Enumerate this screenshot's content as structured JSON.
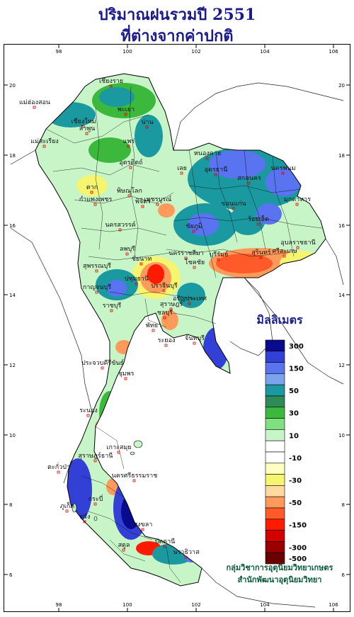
{
  "title_line1": "ปริมาณฝนรวมปี  2551",
  "title_line2": "ที่ต่างจากค่าปกติ",
  "axes": {
    "top_ticks": [
      "98",
      "100",
      "102",
      "104",
      "106"
    ],
    "bottom_ticks": [
      "98",
      "100",
      "102",
      "104",
      "106"
    ],
    "left_ticks": [
      "20",
      "18",
      "16",
      "14",
      "12",
      "10",
      "8",
      "6"
    ],
    "right_ticks": [
      "20",
      "18",
      "16",
      "14",
      "12",
      "10",
      "8",
      "6"
    ]
  },
  "legend": {
    "unit_label": "มิลลิเมตร",
    "classes": [
      {
        "color": "#0a0a8f",
        "label": "300"
      },
      {
        "color": "#3340d6",
        "label": ""
      },
      {
        "color": "#5a73f0",
        "label": "150"
      },
      {
        "color": "#7aa3ee",
        "label": ""
      },
      {
        "color": "#1a9aa0",
        "label": "50"
      },
      {
        "color": "#2e8b57",
        "label": ""
      },
      {
        "color": "#3cb83c",
        "label": "30"
      },
      {
        "color": "#7ee07e",
        "label": ""
      },
      {
        "color": "#c8f5c8",
        "label": "10"
      },
      {
        "color": "#ffffff",
        "label": ""
      },
      {
        "color": "#ffffff",
        "label": "-10"
      },
      {
        "color": "#ffffc0",
        "label": ""
      },
      {
        "color": "#f5f570",
        "label": "-30"
      },
      {
        "color": "#ffd9a0",
        "label": ""
      },
      {
        "color": "#ff9a5a",
        "label": "-50"
      },
      {
        "color": "#ff5a2a",
        "label": ""
      },
      {
        "color": "#ff1a00",
        "label": "-150"
      },
      {
        "color": "#d40000",
        "label": ""
      },
      {
        "color": "#9a0000",
        "label": "-300"
      },
      {
        "color": "#6a0000",
        "label": "-500"
      }
    ]
  },
  "credit": {
    "line1": "กลุ่มวิชาการอุตุนิยมวิทยาเกษตร",
    "line2": "สำนักพัฒนาอุตุนิยมวิทยา"
  },
  "places": [
    {
      "name": "เชียงราย"
    },
    {
      "name": "แม่ฮ่องสอน"
    },
    {
      "name": "พะเยา"
    },
    {
      "name": "เชียงใหม่"
    },
    {
      "name": "น่าน"
    },
    {
      "name": "ลำพูน"
    },
    {
      "name": "แพร่"
    },
    {
      "name": "แม่สะเรียง"
    },
    {
      "name": "อุตรดิตถ์"
    },
    {
      "name": "หนองคาย"
    },
    {
      "name": "เลย"
    },
    {
      "name": "อุดรธานี"
    },
    {
      "name": "นครพนม"
    },
    {
      "name": "สกลนคร"
    },
    {
      "name": "ตาก"
    },
    {
      "name": "พิษณุโลก"
    },
    {
      "name": "มุกดาหาร"
    },
    {
      "name": "กำแพงเพชร"
    },
    {
      "name": "พิจิตร"
    },
    {
      "name": "เพชรบูรณ์"
    },
    {
      "name": "ขอนแก่น"
    },
    {
      "name": "ชัยภูมิ"
    },
    {
      "name": "ร้อยเอ็ด"
    },
    {
      "name": "นครสวรรค์"
    },
    {
      "name": "อุบลราชธานี"
    },
    {
      "name": "ลพบุรี"
    },
    {
      "name": "นครราชสีมา"
    },
    {
      "name": "สุรินทร์"
    },
    {
      "name": "ศรีสะเกษ"
    },
    {
      "name": "ชัยนาท"
    },
    {
      "name": "บุรีรัมย์"
    },
    {
      "name": "สุพรรณบุรี"
    },
    {
      "name": "ปทุมธานี"
    },
    {
      "name": "โชคชัย"
    },
    {
      "name": "กาญจนบุรี"
    },
    {
      "name": "ปราจีนบุรี"
    },
    {
      "name": "ราชบุรี"
    },
    {
      "name": "อรัญประเทศ"
    },
    {
      "name": "สุราษฎร์"
    },
    {
      "name": "ชลบุรี"
    },
    {
      "name": "พัทยา"
    },
    {
      "name": "ระยอง"
    },
    {
      "name": "จันทบุรี"
    },
    {
      "name": "ประจวบคีรีขันธ์"
    },
    {
      "name": "ชุมพร"
    },
    {
      "name": "ระนอง"
    },
    {
      "name": "เกาะสมุย"
    },
    {
      "name": "สุราษฎร์ธานี"
    },
    {
      "name": "ตะกั่วป่า"
    },
    {
      "name": "นครศรีธรรมราช"
    },
    {
      "name": "ภูเก็ต"
    },
    {
      "name": "กระบี่"
    },
    {
      "name": "ตรัง"
    },
    {
      "name": "สงขลา"
    },
    {
      "name": "ปัตตานี"
    },
    {
      "name": "สตูล"
    },
    {
      "name": "นราธิวาส"
    }
  ]
}
